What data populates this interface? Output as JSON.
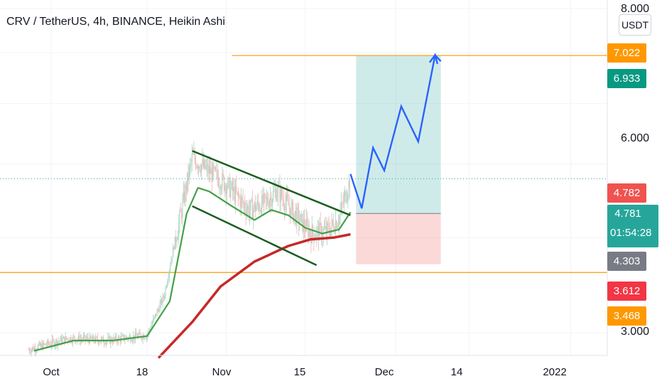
{
  "header": {
    "title": "CRV / TetherUS, 4h, BINANCE, Heikin Ashi"
  },
  "price_axis": {
    "unit_button": "USDT",
    "labels": [
      "8.000",
      "6.000",
      "3.000"
    ],
    "tags": [
      {
        "label": "7.022",
        "color": "#ff9800"
      },
      {
        "label": "6.933",
        "color": "#089981"
      },
      {
        "label": "4.782",
        "color": "#ef5350"
      },
      {
        "label": "4.303",
        "color": "#787b86"
      },
      {
        "label": "3.612",
        "color": "#f23645"
      },
      {
        "label": "3.468",
        "color": "#ff9800"
      }
    ],
    "current": {
      "price": "4.781",
      "countdown": "01:54:28",
      "color": "#26a69a"
    }
  },
  "time_axis": {
    "labels": [
      "Oct",
      "18",
      "Nov",
      "15",
      "Dec",
      "14",
      "2022"
    ]
  },
  "chart_data": {
    "type": "candlestick",
    "symbol": "CRV / TetherUS",
    "interval": "4h",
    "exchange": "BINANCE",
    "style": "Heikin Ashi",
    "y_scale": "log",
    "ylim": [
      2.78,
      8.0
    ],
    "x_ticks": [
      "Oct",
      "18",
      "Nov",
      "15",
      "Dec",
      "14",
      "2022"
    ],
    "price_series_approx": [
      {
        "date": "2021-09-27",
        "price": 2.85
      },
      {
        "date": "2021-10-04",
        "price": 2.95
      },
      {
        "date": "2021-10-11",
        "price": 2.93
      },
      {
        "date": "2021-10-18",
        "price": 2.98
      },
      {
        "date": "2021-10-21",
        "price": 3.35
      },
      {
        "date": "2021-10-24",
        "price": 4.3
      },
      {
        "date": "2021-10-26",
        "price": 5.1
      },
      {
        "date": "2021-10-28",
        "price": 4.95
      },
      {
        "date": "2021-11-01",
        "price": 4.7
      },
      {
        "date": "2021-11-05",
        "price": 4.35
      },
      {
        "date": "2021-11-08",
        "price": 4.45
      },
      {
        "date": "2021-11-10",
        "price": 4.62
      },
      {
        "date": "2021-11-13",
        "price": 4.3
      },
      {
        "date": "2021-11-16",
        "price": 4.05
      },
      {
        "date": "2021-11-19",
        "price": 4.08
      },
      {
        "date": "2021-11-21",
        "price": 4.25
      },
      {
        "date": "2021-11-23",
        "price": 4.78
      }
    ],
    "indicators": [
      {
        "color": "#43a047",
        "values": [
          {
            "date": "2021-09-28",
            "price": 2.84
          },
          {
            "date": "2021-10-05",
            "price": 2.93
          },
          {
            "date": "2021-10-12",
            "price": 2.93
          },
          {
            "date": "2021-10-18",
            "price": 2.97
          },
          {
            "date": "2021-10-22",
            "price": 3.3
          },
          {
            "date": "2021-10-25",
            "price": 4.3
          },
          {
            "date": "2021-10-27",
            "price": 4.65
          },
          {
            "date": "2021-10-29",
            "price": 4.6
          },
          {
            "date": "2021-11-02",
            "price": 4.4
          },
          {
            "date": "2021-11-06",
            "price": 4.22
          },
          {
            "date": "2021-11-09",
            "price": 4.35
          },
          {
            "date": "2021-11-12",
            "price": 4.28
          },
          {
            "date": "2021-11-15",
            "price": 4.12
          },
          {
            "date": "2021-11-18",
            "price": 4.05
          },
          {
            "date": "2021-11-21",
            "price": 4.1
          },
          {
            "date": "2021-11-23",
            "price": 4.32
          }
        ]
      },
      {
        "color": "#c62828",
        "values": [
          {
            "date": "2021-10-20",
            "price": 2.78
          },
          {
            "date": "2021-10-26",
            "price": 3.1
          },
          {
            "date": "2021-10-31",
            "price": 3.45
          },
          {
            "date": "2021-11-06",
            "price": 3.72
          },
          {
            "date": "2021-11-12",
            "price": 3.9
          },
          {
            "date": "2021-11-16",
            "price": 3.98
          },
          {
            "date": "2021-11-20",
            "price": 4.0
          },
          {
            "date": "2021-11-23",
            "price": 4.04
          }
        ]
      }
    ],
    "drawings": {
      "horizontal_lines": [
        {
          "price": 6.94,
          "from": "2021-11-02",
          "color": "#ff9800"
        },
        {
          "price": 3.6,
          "color": "#ff9800"
        }
      ],
      "channel": [
        {
          "x1": "2021-10-26",
          "y1": 5.2,
          "x2": "2021-11-23",
          "y2": 4.28,
          "color": "#1b5e20"
        },
        {
          "x1": "2021-10-26",
          "y1": 4.4,
          "x2": "2021-11-17",
          "y2": 3.68,
          "color": "#1b5e20"
        }
      ],
      "position": {
        "entry": 4.303,
        "target": 6.933,
        "stop": 3.69,
        "from": "2021-11-24",
        "to": "2021-12-09"
      },
      "projection": {
        "color": "#2962ff",
        "points": [
          {
            "date": "2021-11-23",
            "price": 4.85
          },
          {
            "date": "2021-11-25",
            "price": 4.37
          },
          {
            "date": "2021-11-27",
            "price": 5.25
          },
          {
            "date": "2021-11-29",
            "price": 4.9
          },
          {
            "date": "2021-12-02",
            "price": 5.95
          },
          {
            "date": "2021-12-05",
            "price": 5.35
          },
          {
            "date": "2021-12-08",
            "price": 6.95
          },
          {
            "date": "2021-12-09",
            "price": 6.82
          }
        ]
      }
    },
    "last_price": 4.781,
    "current_price_line": 4.781
  }
}
